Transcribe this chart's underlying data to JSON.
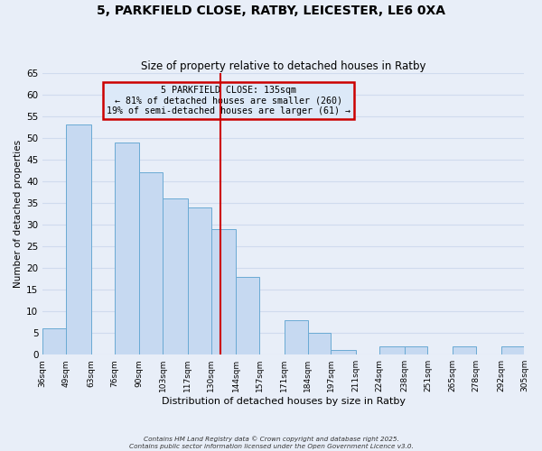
{
  "title": "5, PARKFIELD CLOSE, RATBY, LEICESTER, LE6 0XA",
  "subtitle": "Size of property relative to detached houses in Ratby",
  "xlabel": "Distribution of detached houses by size in Ratby",
  "ylabel": "Number of detached properties",
  "bin_edges": [
    36,
    49,
    63,
    76,
    90,
    103,
    117,
    130,
    144,
    157,
    171,
    184,
    197,
    211,
    224,
    238,
    251,
    265,
    278,
    292,
    305
  ],
  "bar_heights": [
    6,
    53,
    0,
    49,
    42,
    36,
    34,
    29,
    18,
    0,
    8,
    5,
    1,
    0,
    2,
    2,
    0,
    2,
    0,
    2
  ],
  "bar_color": "#c6d9f1",
  "bar_edge_color": "#6aaad4",
  "x_tick_labels": [
    "36sqm",
    "49sqm",
    "63sqm",
    "76sqm",
    "90sqm",
    "103sqm",
    "117sqm",
    "130sqm",
    "144sqm",
    "157sqm",
    "171sqm",
    "184sqm",
    "197sqm",
    "211sqm",
    "224sqm",
    "238sqm",
    "251sqm",
    "265sqm",
    "278sqm",
    "292sqm",
    "305sqm"
  ],
  "ylim": [
    0,
    65
  ],
  "yticks": [
    0,
    5,
    10,
    15,
    20,
    25,
    30,
    35,
    40,
    45,
    50,
    55,
    60,
    65
  ],
  "vline_x": 135,
  "vline_color": "#cc0000",
  "annotation_title": "5 PARKFIELD CLOSE: 135sqm",
  "annotation_line1": "← 81% of detached houses are smaller (260)",
  "annotation_line2": "19% of semi-detached houses are larger (61) →",
  "annotation_box_edgecolor": "#cc0000",
  "annotation_bg": "#dce9f8",
  "grid_color": "#d0dbee",
  "background_color": "#e8eef8",
  "footer_line1": "Contains HM Land Registry data © Crown copyright and database right 2025.",
  "footer_line2": "Contains public sector information licensed under the Open Government Licence v3.0."
}
